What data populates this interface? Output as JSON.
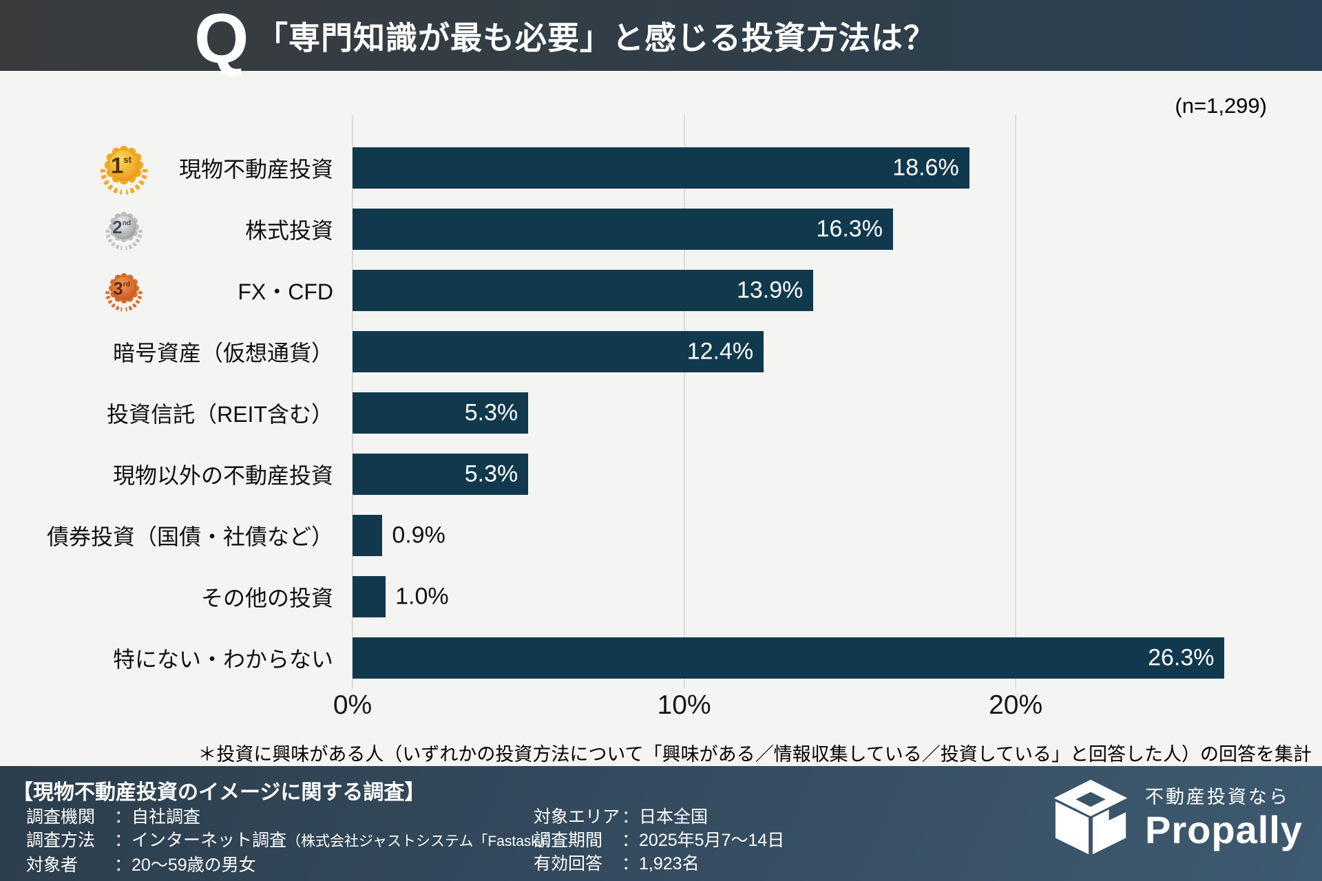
{
  "header": {
    "q_mark": "Q",
    "title": "「専門知識が最も必要」と感じる投資方法は？"
  },
  "sample_size": "(n=1,299)",
  "chart_data": {
    "type": "bar",
    "orientation": "horizontal",
    "title": "「専門知識が最も必要」と感じる投資方法は？",
    "categories": [
      "現物不動産投資",
      "株式投資",
      "FX・CFD",
      "暗号資産（仮想通貨）",
      "投資信託（REIT含む）",
      "現物以外の不動産投資",
      "債券投資（国債・社債など）",
      "その他の投資",
      "特にない・わからない"
    ],
    "values": [
      18.6,
      16.3,
      13.9,
      12.4,
      5.3,
      5.3,
      0.9,
      1.0,
      26.3
    ],
    "value_labels": [
      "18.6%",
      "16.3%",
      "13.9%",
      "12.4%",
      "5.3%",
      "5.3%",
      "0.9%",
      "1.0%",
      "26.3%"
    ],
    "x_ticks": [
      {
        "label": "0%",
        "value": 0
      },
      {
        "label": "10%",
        "value": 10
      },
      {
        "label": "20%",
        "value": 20
      }
    ],
    "xlim": [
      0,
      28.2
    ],
    "grid": "vertical-lines",
    "legend": "none",
    "bar_color": "#11394e",
    "inside_label_min_value": 2,
    "medals": [
      {
        "num": "1",
        "suffix": "st",
        "size": 82,
        "light": "#ffd95a",
        "dark": "#ea9617",
        "base": "#f0ab25",
        "text": "#4a3008"
      },
      {
        "num": "2",
        "suffix": "nd",
        "size": 64,
        "light": "#efefef",
        "dark": "#9b9b9e",
        "base": "#bfbfc2",
        "text": "#3c4c5c"
      },
      {
        "num": "3",
        "suffix": "rd",
        "size": 64,
        "light": "#f59a57",
        "dark": "#c3571c",
        "base": "#d96c2b",
        "text": "#5c2708"
      }
    ]
  },
  "footnote": "＊投資に興味がある人（いずれかの投資方法について「興味がある／情報収集している／投資している」と回答した人）の回答を集計",
  "footer": {
    "title": "【現物不動産投資のイメージに関する調査】",
    "left_rows": [
      {
        "label": "調査機関",
        "value": "自社調査",
        "note": ""
      },
      {
        "label": "調査方法",
        "value": "インターネット調査",
        "note": "（株式会社ジャストシステム「Fastask」）"
      },
      {
        "label": "対象者",
        "value": "20〜59歳の男女",
        "note": ""
      }
    ],
    "right_rows": [
      {
        "label": "対象エリア",
        "value": "日本全国",
        "note": ""
      },
      {
        "label": "調査期間",
        "value": "2025年5月7〜14日",
        "note": ""
      },
      {
        "label": "有効回答",
        "value": "1,923名",
        "note": ""
      }
    ],
    "logo": {
      "tagline": "不動産投資なら",
      "brand": "Propally"
    }
  },
  "colors": {
    "bar": "#11394e",
    "header_left": "#393b3c",
    "header_right": "#2a4153",
    "footer_left": "#2c3e4d",
    "footer_right": "#3e5a70",
    "background": "#f4f4f2",
    "gridline": "#dcdcdc"
  }
}
